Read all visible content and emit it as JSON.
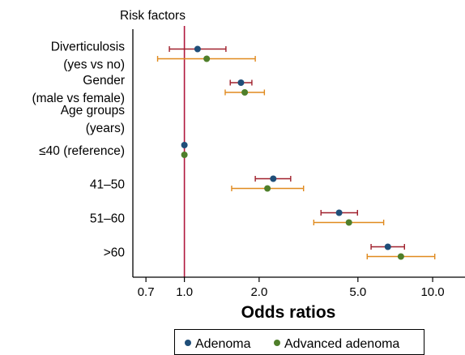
{
  "chart_data": {
    "type": "forest",
    "header": "Risk factors",
    "xlabel": "Odds ratios",
    "xscale": "log",
    "xlim": [
      0.62,
      13.5
    ],
    "xticks": [
      0.7,
      1.0,
      2.0,
      5.0,
      10.0
    ],
    "xtick_labels": [
      "0.7",
      "1.0",
      "2.0",
      "5.0",
      "10.0"
    ],
    "reference_line": 1.0,
    "rows": [
      {
        "label": [
          "Diverticulosis",
          "(yes vs no)"
        ],
        "estimates": [
          {
            "series": "Adenoma",
            "or": 1.13,
            "lo": 0.87,
            "hi": 1.47
          },
          {
            "series": "Advanced adenoma",
            "or": 1.23,
            "lo": 0.78,
            "hi": 1.93
          }
        ]
      },
      {
        "label": [
          "Gender",
          "(male vs female)"
        ],
        "estimates": [
          {
            "series": "Adenoma",
            "or": 1.69,
            "lo": 1.53,
            "hi": 1.87
          },
          {
            "series": "Advanced adenoma",
            "or": 1.75,
            "lo": 1.46,
            "hi": 2.1
          }
        ]
      },
      {
        "label": [
          "Age groups",
          "(years)"
        ],
        "estimates": []
      },
      {
        "label": [
          "≤40 (reference)"
        ],
        "estimates": [
          {
            "series": "Adenoma",
            "or": 1.0,
            "lo": 1.0,
            "hi": 1.0
          },
          {
            "series": "Advanced adenoma",
            "or": 1.0,
            "lo": 1.0,
            "hi": 1.0
          }
        ]
      },
      {
        "label": [
          "41–50"
        ],
        "estimates": [
          {
            "series": "Adenoma",
            "or": 2.28,
            "lo": 1.93,
            "hi": 2.68
          },
          {
            "series": "Advanced adenoma",
            "or": 2.16,
            "lo": 1.55,
            "hi": 3.02
          }
        ]
      },
      {
        "label": [
          "51–60"
        ],
        "estimates": [
          {
            "series": "Adenoma",
            "or": 4.2,
            "lo": 3.55,
            "hi": 4.98
          },
          {
            "series": "Advanced adenoma",
            "or": 4.6,
            "lo": 3.32,
            "hi": 6.35
          }
        ]
      },
      {
        "label": [
          ">60"
        ],
        "estimates": [
          {
            "series": "Adenoma",
            "or": 6.6,
            "lo": 5.65,
            "hi": 7.7
          },
          {
            "series": "Advanced adenoma",
            "or": 7.45,
            "lo": 5.45,
            "hi": 10.2
          }
        ]
      }
    ],
    "legend": {
      "placement": "bottom",
      "entries": [
        {
          "name": "Adenoma",
          "marker_color": "#1f4e79",
          "ci_color": "#a0202c"
        },
        {
          "name": "Advanced adenoma",
          "marker_color": "#4f7f2a",
          "ci_color": "#e08a1e"
        }
      ]
    },
    "colors": {
      "reference_line": "#b0183c",
      "axis": "#000000"
    }
  }
}
